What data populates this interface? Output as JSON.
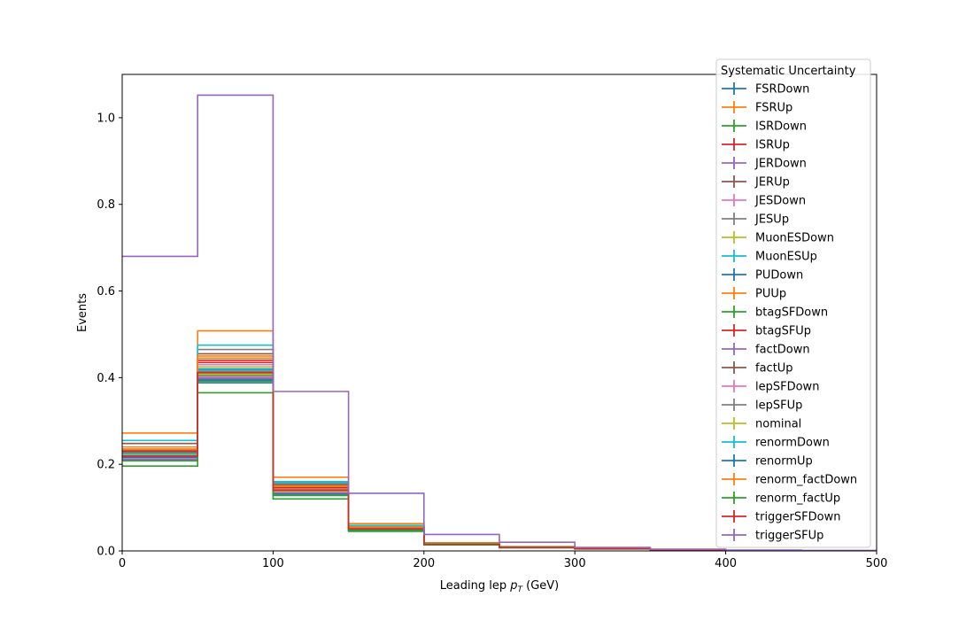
{
  "chart_data": {
    "type": "histogram-step",
    "xlabel_prefix": "Leading lep ",
    "xlabel_var": "p",
    "xlabel_sub": "T",
    "xlabel_suffix": " (GeV)",
    "ylabel": "Events",
    "xlim": [
      0,
      500
    ],
    "ylim": [
      0,
      1.1
    ],
    "xticks": [
      0,
      100,
      200,
      300,
      400,
      500
    ],
    "yticks": [
      0.0,
      0.2,
      0.4,
      0.6,
      0.8,
      1.0
    ],
    "bin_edges": [
      0,
      50,
      100,
      150,
      200,
      250,
      300,
      350,
      400,
      450,
      500
    ],
    "legend_title": "Systematic Uncertainty",
    "legend_position": "upper-right",
    "grid": false,
    "series": [
      {
        "name": "FSRDown",
        "color": "#1f77b4",
        "values": [
          0.225,
          0.42,
          0.14,
          0.052,
          0.016,
          0.008,
          0.005,
          0.002,
          0.001,
          0.0005
        ]
      },
      {
        "name": "FSRUp",
        "color": "#ff7f0e",
        "values": [
          0.272,
          0.508,
          0.17,
          0.063,
          0.019,
          0.01,
          0.006,
          0.0025,
          0.0012,
          0.0006
        ]
      },
      {
        "name": "ISRDown",
        "color": "#2ca02c",
        "values": [
          0.215,
          0.405,
          0.135,
          0.05,
          0.015,
          0.008,
          0.005,
          0.002,
          0.001,
          0.0005
        ]
      },
      {
        "name": "ISRUp",
        "color": "#d62728",
        "values": [
          0.23,
          0.44,
          0.148,
          0.054,
          0.017,
          0.009,
          0.0055,
          0.0022,
          0.0011,
          0.0005
        ]
      },
      {
        "name": "JERDown",
        "color": "#9467bd",
        "values": [
          0.21,
          0.4,
          0.133,
          0.049,
          0.015,
          0.008,
          0.005,
          0.002,
          0.001,
          0.0005
        ]
      },
      {
        "name": "JERUp",
        "color": "#8c564b",
        "values": [
          0.248,
          0.455,
          0.152,
          0.056,
          0.017,
          0.009,
          0.0055,
          0.0022,
          0.0011,
          0.0005
        ]
      },
      {
        "name": "JESDown",
        "color": "#e377c2",
        "values": [
          0.22,
          0.43,
          0.143,
          0.053,
          0.016,
          0.0085,
          0.0052,
          0.0021,
          0.001,
          0.0005
        ]
      },
      {
        "name": "JESUp",
        "color": "#7f7f7f",
        "values": [
          0.235,
          0.465,
          0.155,
          0.057,
          0.018,
          0.0092,
          0.0057,
          0.0023,
          0.0011,
          0.0005
        ]
      },
      {
        "name": "MuonESDown",
        "color": "#bcbd22",
        "values": [
          0.222,
          0.425,
          0.142,
          0.052,
          0.016,
          0.0083,
          0.0051,
          0.002,
          0.001,
          0.0005
        ]
      },
      {
        "name": "MuonESUp",
        "color": "#17becf",
        "values": [
          0.255,
          0.475,
          0.16,
          0.059,
          0.018,
          0.0095,
          0.0058,
          0.0024,
          0.0012,
          0.0006
        ]
      },
      {
        "name": "PUDown",
        "color": "#1f77b4",
        "values": [
          0.218,
          0.395,
          0.137,
          0.051,
          0.0155,
          0.0081,
          0.005,
          0.002,
          0.001,
          0.0005
        ]
      },
      {
        "name": "PUUp",
        "color": "#ff7f0e",
        "values": [
          0.24,
          0.45,
          0.15,
          0.055,
          0.017,
          0.0088,
          0.0054,
          0.0022,
          0.0011,
          0.0005
        ]
      },
      {
        "name": "btagSFDown",
        "color": "#2ca02c",
        "values": [
          0.196,
          0.365,
          0.12,
          0.045,
          0.014,
          0.0072,
          0.0045,
          0.0018,
          0.0009,
          0.0004
        ]
      },
      {
        "name": "btagSFUp",
        "color": "#d62728",
        "values": [
          0.232,
          0.435,
          0.146,
          0.054,
          0.0165,
          0.0086,
          0.0053,
          0.0021,
          0.0011,
          0.0005
        ]
      },
      {
        "name": "factDown",
        "color": "#9467bd",
        "values": [
          0.212,
          0.398,
          0.134,
          0.049,
          0.015,
          0.0079,
          0.0049,
          0.002,
          0.001,
          0.0005
        ]
      },
      {
        "name": "factUp",
        "color": "#8c564b",
        "values": [
          0.228,
          0.41,
          0.139,
          0.051,
          0.0158,
          0.0082,
          0.0051,
          0.002,
          0.001,
          0.0005
        ]
      },
      {
        "name": "lepSFDown",
        "color": "#e377c2",
        "values": [
          0.214,
          0.402,
          0.136,
          0.05,
          0.0152,
          0.008,
          0.005,
          0.002,
          0.001,
          0.0005
        ]
      },
      {
        "name": "lepSFUp",
        "color": "#7f7f7f",
        "values": [
          0.226,
          0.415,
          0.141,
          0.052,
          0.016,
          0.0083,
          0.0051,
          0.002,
          0.001,
          0.0005
        ]
      },
      {
        "name": "nominal",
        "color": "#bcbd22",
        "values": [
          0.22,
          0.408,
          0.138,
          0.051,
          0.0156,
          0.0081,
          0.005,
          0.002,
          0.001,
          0.0005
        ]
      },
      {
        "name": "renormDown",
        "color": "#17becf",
        "values": [
          0.224,
          0.418,
          0.158,
          0.058,
          0.0175,
          0.009,
          0.0056,
          0.0022,
          0.0011,
          0.0005
        ]
      },
      {
        "name": "renormUp",
        "color": "#1f77b4",
        "values": [
          0.216,
          0.388,
          0.131,
          0.048,
          0.0148,
          0.0077,
          0.0048,
          0.0019,
          0.001,
          0.0005
        ]
      },
      {
        "name": "renorm_factDown",
        "color": "#ff7f0e",
        "values": [
          0.234,
          0.445,
          0.149,
          0.055,
          0.0168,
          0.0087,
          0.0054,
          0.0022,
          0.0011,
          0.0005
        ]
      },
      {
        "name": "renorm_factUp",
        "color": "#2ca02c",
        "values": [
          0.208,
          0.392,
          0.128,
          0.047,
          0.0145,
          0.0075,
          0.0047,
          0.0019,
          0.0009,
          0.0004
        ]
      },
      {
        "name": "triggerSFDown",
        "color": "#d62728",
        "values": [
          0.219,
          0.412,
          0.14,
          0.051,
          0.0156,
          0.0081,
          0.005,
          0.002,
          0.001,
          0.0005
        ]
      },
      {
        "name": "triggerSFUp",
        "color": "#9467bd",
        "values": [
          0.68,
          1.052,
          0.368,
          0.133,
          0.038,
          0.02,
          0.008,
          0.004,
          0.002,
          0.001
        ]
      }
    ]
  }
}
